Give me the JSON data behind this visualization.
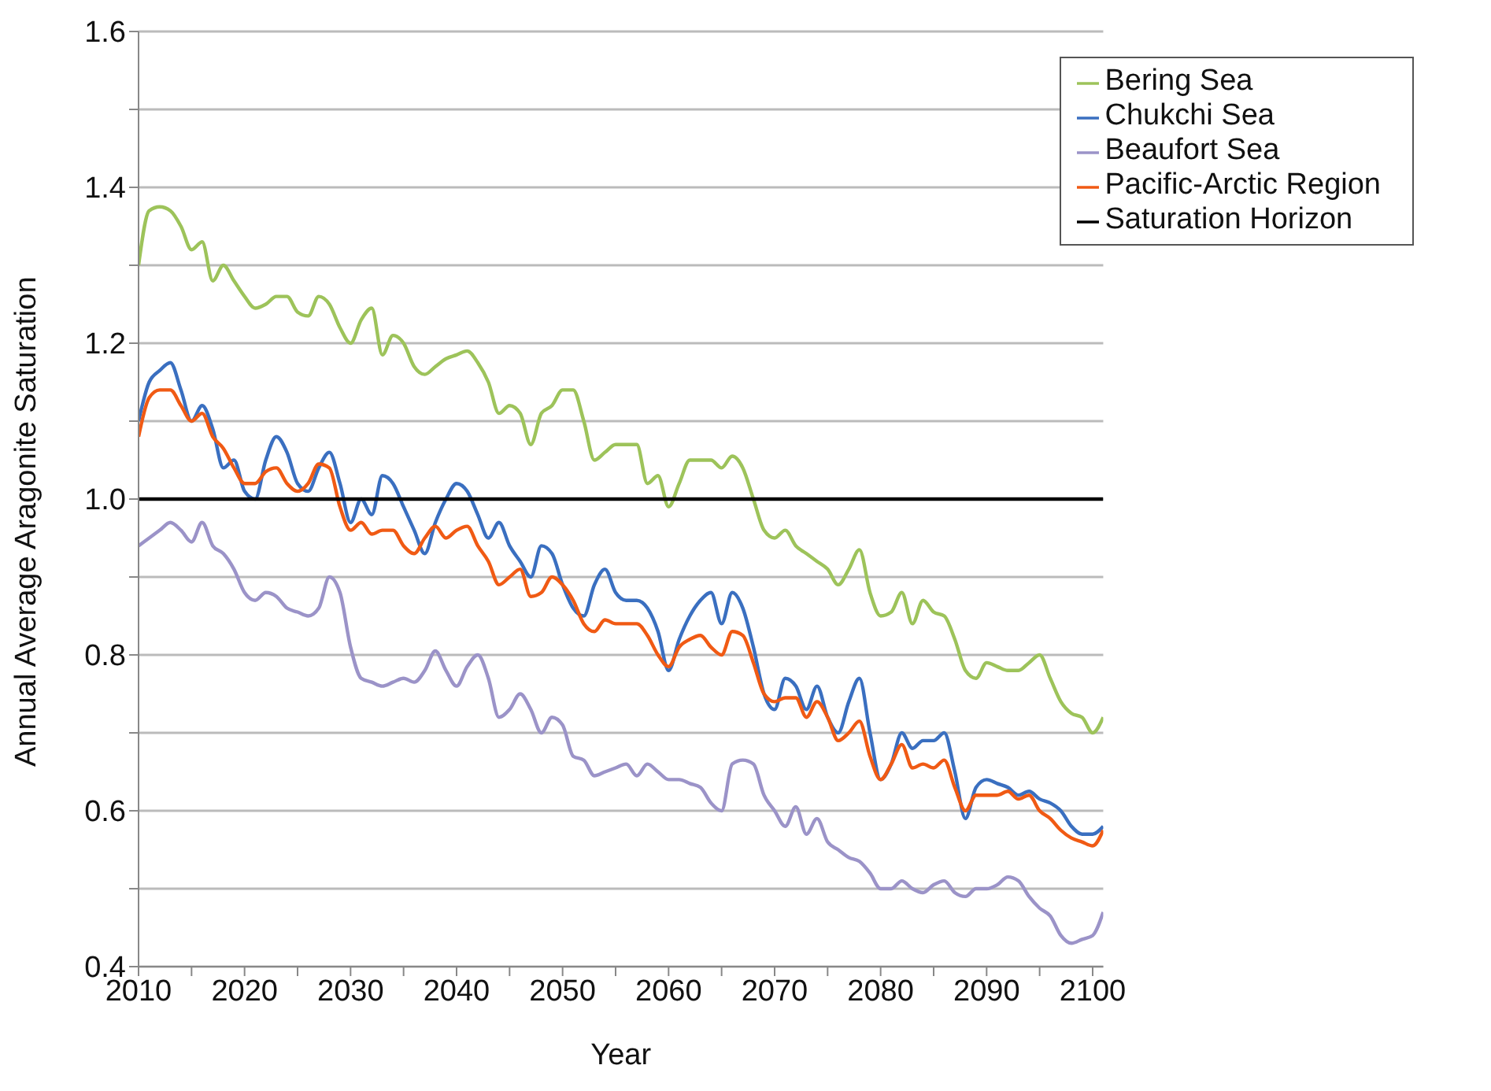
{
  "chart_data": {
    "type": "line",
    "xlabel": "Year",
    "ylabel": "Annual Average Aragonite Saturation",
    "xlim": [
      2010,
      2101
    ],
    "ylim": [
      0.4,
      1.6
    ],
    "xticks": [
      2010,
      {
        "value": 2015,
        "label": null
      },
      2020,
      {
        "value": 2025,
        "label": null
      },
      2030,
      {
        "value": 2035,
        "label": null
      },
      2040,
      {
        "value": 2045,
        "label": null
      },
      2050,
      {
        "value": 2055,
        "label": null
      },
      2060,
      {
        "value": 2065,
        "label": null
      },
      2070,
      {
        "value": 2075,
        "label": null
      },
      2080,
      {
        "value": 2085,
        "label": null
      },
      2090,
      {
        "value": 2095,
        "label": null
      },
      2100
    ],
    "yticks": [
      {
        "value": 0.4,
        "label": "0.4"
      },
      {
        "value": 0.5,
        "label": null
      },
      {
        "value": 0.6,
        "label": "0.6"
      },
      {
        "value": 0.7,
        "label": null
      },
      {
        "value": 0.8,
        "label": "0.8"
      },
      {
        "value": 0.9,
        "label": null
      },
      {
        "value": 1.0,
        "label": "1.0"
      },
      {
        "value": 1.1,
        "label": null
      },
      {
        "value": 1.2,
        "label": "1.2"
      },
      {
        "value": 1.3,
        "label": null
      },
      {
        "value": 1.4,
        "label": "1.4"
      },
      {
        "value": 1.5,
        "label": null
      },
      {
        "value": 1.6,
        "label": "1.6"
      }
    ],
    "grid": "y",
    "legend": "top right",
    "marker": "none",
    "line_style": "solid",
    "x": [
      2010,
      2011,
      2012,
      2013,
      2014,
      2015,
      2016,
      2017,
      2018,
      2019,
      2020,
      2021,
      2022,
      2023,
      2024,
      2025,
      2026,
      2027,
      2028,
      2029,
      2030,
      2031,
      2032,
      2033,
      2034,
      2035,
      2036,
      2037,
      2038,
      2039,
      2040,
      2041,
      2042,
      2043,
      2044,
      2045,
      2046,
      2047,
      2048,
      2049,
      2050,
      2051,
      2052,
      2053,
      2054,
      2055,
      2056,
      2057,
      2058,
      2059,
      2060,
      2061,
      2062,
      2063,
      2064,
      2065,
      2066,
      2067,
      2068,
      2069,
      2070,
      2071,
      2072,
      2073,
      2074,
      2075,
      2076,
      2077,
      2078,
      2079,
      2080,
      2081,
      2082,
      2083,
      2084,
      2085,
      2086,
      2087,
      2088,
      2089,
      2090,
      2091,
      2092,
      2093,
      2094,
      2095,
      2096,
      2097,
      2098,
      2099,
      2100,
      2101
    ],
    "series": [
      {
        "name": "Bering Sea",
        "color": "#9dc35a",
        "values": [
          1.3,
          1.37,
          1.375,
          1.37,
          1.35,
          1.32,
          1.33,
          1.28,
          1.3,
          1.28,
          1.26,
          1.245,
          1.25,
          1.26,
          1.26,
          1.24,
          1.235,
          1.26,
          1.25,
          1.22,
          1.2,
          1.23,
          1.245,
          1.185,
          1.21,
          1.2,
          1.17,
          1.16,
          1.17,
          1.18,
          1.185,
          1.19,
          1.175,
          1.15,
          1.11,
          1.12,
          1.11,
          1.07,
          1.11,
          1.12,
          1.14,
          1.14,
          1.1,
          1.05,
          1.06,
          1.07,
          1.07,
          1.07,
          1.02,
          1.03,
          0.99,
          1.02,
          1.05,
          1.05,
          1.05,
          1.04,
          1.055,
          1.04,
          1.0,
          0.96,
          0.95,
          0.96,
          0.94,
          0.93,
          0.92,
          0.91,
          0.89,
          0.91,
          0.935,
          0.88,
          0.85,
          0.855,
          0.88,
          0.84,
          0.87,
          0.855,
          0.85,
          0.82,
          0.78,
          0.77,
          0.79,
          0.785,
          0.78,
          0.78,
          0.79,
          0.8,
          0.77,
          0.74,
          0.725,
          0.72,
          0.7,
          0.72
        ]
      },
      {
        "name": "Chukchi Sea",
        "color": "#3a6fc0",
        "values": [
          1.1,
          1.15,
          1.165,
          1.175,
          1.14,
          1.1,
          1.12,
          1.09,
          1.04,
          1.05,
          1.01,
          1.0,
          1.05,
          1.08,
          1.06,
          1.02,
          1.01,
          1.04,
          1.06,
          1.02,
          0.97,
          1.0,
          0.98,
          1.03,
          1.02,
          0.99,
          0.96,
          0.93,
          0.97,
          1.0,
          1.02,
          1.01,
          0.98,
          0.95,
          0.97,
          0.94,
          0.92,
          0.9,
          0.94,
          0.93,
          0.89,
          0.86,
          0.85,
          0.89,
          0.91,
          0.88,
          0.87,
          0.87,
          0.86,
          0.83,
          0.78,
          0.82,
          0.85,
          0.87,
          0.88,
          0.84,
          0.88,
          0.86,
          0.81,
          0.75,
          0.73,
          0.77,
          0.76,
          0.73,
          0.76,
          0.72,
          0.7,
          0.74,
          0.77,
          0.7,
          0.64,
          0.66,
          0.7,
          0.68,
          0.69,
          0.69,
          0.7,
          0.65,
          0.59,
          0.63,
          0.64,
          0.635,
          0.63,
          0.62,
          0.625,
          0.615,
          0.61,
          0.6,
          0.58,
          0.57,
          0.57,
          0.58
        ]
      },
      {
        "name": "Beaufort Sea",
        "color": "#9b93c8",
        "values": [
          0.94,
          0.95,
          0.96,
          0.97,
          0.96,
          0.945,
          0.97,
          0.94,
          0.93,
          0.91,
          0.88,
          0.87,
          0.88,
          0.875,
          0.86,
          0.855,
          0.85,
          0.86,
          0.9,
          0.88,
          0.81,
          0.77,
          0.765,
          0.76,
          0.765,
          0.77,
          0.765,
          0.78,
          0.805,
          0.78,
          0.76,
          0.785,
          0.8,
          0.77,
          0.72,
          0.73,
          0.75,
          0.73,
          0.7,
          0.72,
          0.71,
          0.67,
          0.665,
          0.645,
          0.65,
          0.655,
          0.66,
          0.645,
          0.66,
          0.65,
          0.64,
          0.64,
          0.635,
          0.63,
          0.61,
          0.6,
          0.66,
          0.665,
          0.66,
          0.62,
          0.6,
          0.58,
          0.605,
          0.57,
          0.59,
          0.56,
          0.55,
          0.54,
          0.535,
          0.52,
          0.5,
          0.5,
          0.51,
          0.5,
          0.495,
          0.505,
          0.51,
          0.495,
          0.49,
          0.5,
          0.5,
          0.505,
          0.515,
          0.51,
          0.49,
          0.475,
          0.465,
          0.44,
          0.43,
          0.435,
          0.44,
          0.47
        ]
      },
      {
        "name": "Pacific-Arctic Region",
        "color": "#f05a14",
        "values": [
          1.08,
          1.13,
          1.14,
          1.14,
          1.12,
          1.1,
          1.11,
          1.08,
          1.065,
          1.04,
          1.02,
          1.02,
          1.035,
          1.04,
          1.02,
          1.01,
          1.02,
          1.045,
          1.04,
          0.99,
          0.96,
          0.97,
          0.955,
          0.96,
          0.96,
          0.94,
          0.93,
          0.95,
          0.965,
          0.95,
          0.96,
          0.965,
          0.94,
          0.92,
          0.89,
          0.9,
          0.91,
          0.875,
          0.88,
          0.9,
          0.89,
          0.87,
          0.84,
          0.83,
          0.845,
          0.84,
          0.84,
          0.84,
          0.825,
          0.8,
          0.785,
          0.81,
          0.82,
          0.825,
          0.81,
          0.8,
          0.83,
          0.825,
          0.79,
          0.75,
          0.74,
          0.745,
          0.745,
          0.72,
          0.74,
          0.72,
          0.69,
          0.7,
          0.715,
          0.67,
          0.64,
          0.66,
          0.685,
          0.655,
          0.66,
          0.655,
          0.665,
          0.63,
          0.6,
          0.62,
          0.62,
          0.62,
          0.625,
          0.615,
          0.62,
          0.6,
          0.59,
          0.575,
          0.565,
          0.56,
          0.555,
          0.575
        ]
      },
      {
        "name": "Saturation Horizon",
        "color": "#000000",
        "x": [
          2010,
          2101
        ],
        "values": [
          1.0,
          1.0
        ]
      }
    ]
  }
}
